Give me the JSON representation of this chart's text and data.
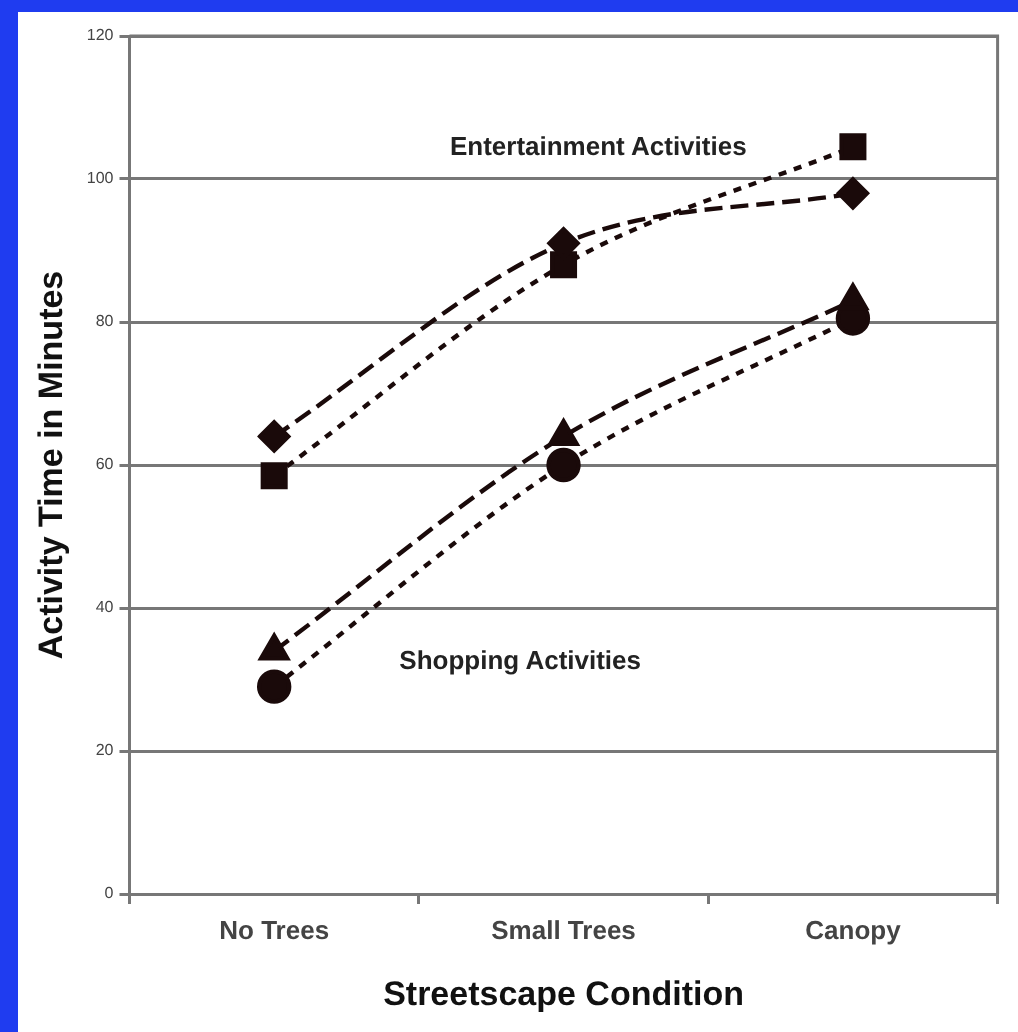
{
  "chart_data": {
    "type": "line",
    "xlabel": "Streetscape Condition",
    "ylabel": "Activity Time in Minutes",
    "categories": [
      "No Trees",
      "Small Trees",
      "Canopy"
    ],
    "series": [
      {
        "color": "#1a0a0a",
        "values": [
          64,
          91,
          98
        ],
        "marker": "diamond",
        "line_style": "dashed"
      },
      {
        "color": "#1a0a0a",
        "values": [
          58.5,
          88,
          104.5
        ],
        "marker": "square",
        "line_style": "dotted"
      },
      {
        "color": "#1a0a0a",
        "values": [
          34,
          64,
          83
        ],
        "marker": "triangle",
        "line_style": "dashed"
      },
      {
        "color": "#1a0a0a",
        "values": [
          29,
          60,
          80.5
        ],
        "marker": "circle",
        "line_style": "dotted"
      }
    ],
    "ylim": [
      0,
      120
    ],
    "yticks": [
      0,
      20,
      40,
      60,
      80,
      100,
      120
    ],
    "grid": "y",
    "legend": false,
    "annotations": [
      "Entertainment Activities",
      "Shopping Activities"
    ]
  }
}
